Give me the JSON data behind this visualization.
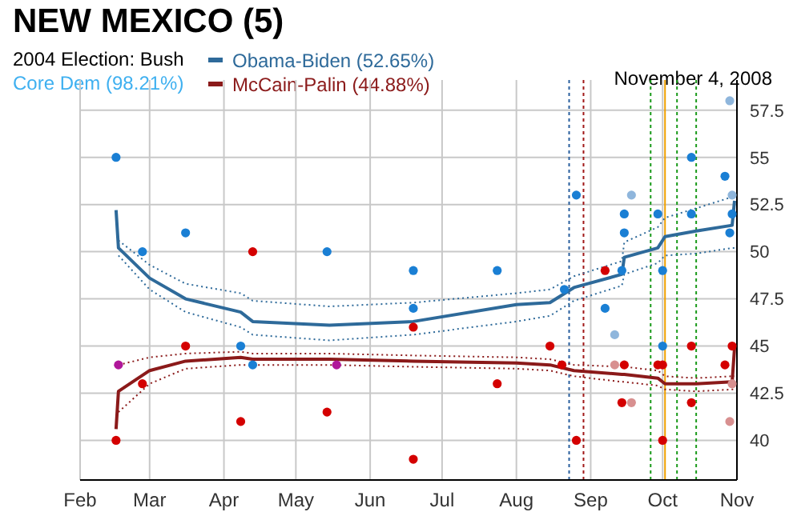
{
  "chart_data": {
    "type": "line",
    "title": "NEW MEXICO (5)",
    "annotations": [
      "2004 Election: Bush",
      "Core Dem (98.21%)",
      "November 4, 2008"
    ],
    "xlim": [
      "2008-02-01",
      "2008-11-01"
    ],
    "xticks": [
      {
        "value": "2008-02-01",
        "label": "Feb"
      },
      {
        "value": "2008-03-01",
        "label": "Mar"
      },
      {
        "value": "2008-04-01",
        "label": "Apr"
      },
      {
        "value": "2008-05-01",
        "label": "May"
      },
      {
        "value": "2008-06-01",
        "label": "Jun"
      },
      {
        "value": "2008-07-01",
        "label": "Jul"
      },
      {
        "value": "2008-08-01",
        "label": "Aug"
      },
      {
        "value": "2008-09-01",
        "label": "Sep"
      },
      {
        "value": "2008-10-01",
        "label": "Oct"
      },
      {
        "value": "2008-11-01",
        "label": "Nov"
      }
    ],
    "ylim": [
      37.9,
      59.1
    ],
    "yticks": [
      40,
      42.5,
      45,
      47.5,
      50,
      52.5,
      55,
      57.5
    ],
    "grid": true,
    "legend": "top",
    "ref_lines": [
      {
        "axis": "x",
        "value": "2008-08-23",
        "color": "#2a5f9e",
        "line_style": "dotted"
      },
      {
        "axis": "x",
        "value": "2008-08-29",
        "color": "#a01818",
        "line_style": "dotted"
      },
      {
        "axis": "x",
        "value": "2008-09-26",
        "color": "#1a9a1a",
        "line_style": "dotted"
      },
      {
        "axis": "x",
        "value": "2008-10-02",
        "color": "#f0a000",
        "line_style": "solid"
      },
      {
        "axis": "x",
        "value": "2008-10-07",
        "color": "#1a9a1a",
        "line_style": "dotted"
      },
      {
        "axis": "x",
        "value": "2008-10-15",
        "color": "#1a9a1a",
        "line_style": "dotted"
      }
    ],
    "series": [
      {
        "type": "scatter",
        "color": "#1a7fd4",
        "x": [
          "2008-02-16",
          "2008-02-27",
          "2008-03-16",
          "2008-04-08",
          "2008-04-13",
          "2008-05-14",
          "2008-06-19",
          "2008-06-19",
          "2008-07-24",
          "2008-08-21",
          "2008-08-26",
          "2008-09-07",
          "2008-09-15",
          "2008-09-15",
          "2008-09-14",
          "2008-09-29",
          "2008-10-01",
          "2008-10-01",
          "2008-10-13",
          "2008-10-13",
          "2008-10-27",
          "2008-10-30",
          "2008-10-29"
        ],
        "values": [
          55,
          50,
          51,
          45,
          44,
          50,
          49,
          47,
          49,
          48,
          53,
          47,
          52,
          51,
          49,
          52,
          49,
          45,
          52,
          55,
          54,
          52,
          51
        ]
      },
      {
        "type": "scatter",
        "color": "#d40000",
        "x": [
          "2008-02-16",
          "2008-02-27",
          "2008-03-16",
          "2008-04-13",
          "2008-04-08",
          "2008-05-14",
          "2008-06-19",
          "2008-06-19",
          "2008-07-24",
          "2008-08-15",
          "2008-08-20",
          "2008-08-26",
          "2008-09-07",
          "2008-09-15",
          "2008-09-14",
          "2008-09-29",
          "2008-10-01",
          "2008-10-01",
          "2008-10-13",
          "2008-10-13",
          "2008-10-27",
          "2008-10-30"
        ],
        "values": [
          40,
          43,
          45,
          50,
          41,
          41.5,
          39,
          46,
          43,
          45,
          44,
          40,
          49,
          44,
          42,
          44,
          44,
          40,
          45,
          42,
          44,
          45
        ]
      },
      {
        "type": "scatter",
        "color": "#b0179a",
        "x": [
          "2008-02-17",
          "2008-05-18"
        ],
        "values": [
          44,
          44
        ]
      },
      {
        "type": "scatter",
        "color": "#8fb6dc",
        "x": [
          "2008-09-18",
          "2008-09-11",
          "2008-10-29",
          "2008-10-30"
        ],
        "values": [
          53,
          45.6,
          58,
          53
        ]
      },
      {
        "type": "scatter",
        "color": "#d89090",
        "x": [
          "2008-09-11",
          "2008-09-18",
          "2008-10-29",
          "2008-10-30"
        ],
        "values": [
          44,
          42,
          41,
          43
        ]
      },
      {
        "line_style": "dotted",
        "color": "#2e6a9a",
        "x": [
          "2008-02-17",
          "2008-03-01",
          "2008-03-16",
          "2008-04-08",
          "2008-04-13",
          "2008-05-15",
          "2008-06-19",
          "2008-08-01",
          "2008-08-15",
          "2008-08-25",
          "2008-09-14",
          "2008-09-15",
          "2008-09-29",
          "2008-10-02",
          "2008-10-15",
          "2008-10-30",
          "2008-10-31"
        ],
        "values": [
          50.6,
          49.3,
          48.3,
          47.8,
          47.4,
          47.1,
          47.3,
          47.8,
          48.0,
          48.7,
          49.5,
          50.5,
          51.3,
          51.8,
          52.3,
          52.9,
          53.3
        ]
      },
      {
        "line_style": "dotted",
        "color": "#2e6a9a",
        "x": [
          "2008-02-17",
          "2008-03-01",
          "2008-03-16",
          "2008-04-08",
          "2008-04-13",
          "2008-05-15",
          "2008-06-19",
          "2008-08-01",
          "2008-08-15",
          "2008-08-25",
          "2008-09-14",
          "2008-09-15",
          "2008-09-29",
          "2008-10-02",
          "2008-10-15",
          "2008-10-30",
          "2008-10-31"
        ],
        "values": [
          49.8,
          48.0,
          46.8,
          46.0,
          45.6,
          45.3,
          45.6,
          46.3,
          46.6,
          47.4,
          48.2,
          48.8,
          49.4,
          49.8,
          49.9,
          50.2,
          50.2
        ]
      },
      {
        "line_style": "dotted",
        "color": "#8b1a1a",
        "x": [
          "2008-02-17",
          "2008-03-01",
          "2008-03-16",
          "2008-04-08",
          "2008-04-13",
          "2008-05-15",
          "2008-06-19",
          "2008-08-01",
          "2008-08-15",
          "2008-08-25",
          "2008-09-14",
          "2008-09-15",
          "2008-09-29",
          "2008-10-02",
          "2008-10-15",
          "2008-10-30",
          "2008-10-31"
        ],
        "values": [
          44.0,
          44.4,
          44.6,
          44.7,
          44.6,
          44.6,
          44.5,
          44.4,
          44.3,
          44.0,
          43.9,
          43.9,
          43.7,
          43.4,
          43.3,
          43.4,
          43.4
        ]
      },
      {
        "line_style": "dotted",
        "color": "#8b1a1a",
        "x": [
          "2008-02-17",
          "2008-03-01",
          "2008-03-16",
          "2008-04-08",
          "2008-04-13",
          "2008-05-15",
          "2008-06-19",
          "2008-08-01",
          "2008-08-15",
          "2008-08-25",
          "2008-09-14",
          "2008-09-15",
          "2008-09-29",
          "2008-10-02",
          "2008-10-15",
          "2008-10-30",
          "2008-10-31"
        ],
        "values": [
          41.5,
          43.0,
          43.8,
          44.0,
          44.0,
          44.0,
          43.9,
          43.8,
          43.7,
          43.4,
          43.1,
          43.1,
          42.9,
          42.7,
          42.6,
          42.7,
          42.7
        ]
      },
      {
        "type": "line",
        "line_style": "solid",
        "name": "Obama-Biden (52.65%)",
        "color": "#2e6a9a",
        "x": [
          "2008-02-16",
          "2008-02-17",
          "2008-03-01",
          "2008-03-16",
          "2008-04-08",
          "2008-04-13",
          "2008-05-15",
          "2008-06-19",
          "2008-08-01",
          "2008-08-15",
          "2008-08-25",
          "2008-09-14",
          "2008-09-15",
          "2008-09-29",
          "2008-10-02",
          "2008-10-15",
          "2008-10-30",
          "2008-10-31"
        ],
        "values": [
          52.2,
          50.2,
          48.6,
          47.5,
          46.8,
          46.3,
          46.1,
          46.3,
          47.2,
          47.3,
          48.1,
          48.8,
          49.7,
          50.2,
          50.8,
          51.1,
          51.4,
          52.7
        ]
      },
      {
        "type": "line",
        "line_style": "solid",
        "name": "McCain-Palin (44.88%)",
        "color": "#8b1a1a",
        "x": [
          "2008-02-16",
          "2008-02-17",
          "2008-03-01",
          "2008-03-16",
          "2008-04-08",
          "2008-04-13",
          "2008-05-15",
          "2008-06-19",
          "2008-08-01",
          "2008-08-15",
          "2008-08-25",
          "2008-09-14",
          "2008-09-15",
          "2008-09-29",
          "2008-10-02",
          "2008-10-15",
          "2008-10-30",
          "2008-10-31"
        ],
        "values": [
          40.6,
          42.6,
          43.7,
          44.2,
          44.4,
          44.3,
          44.3,
          44.2,
          44.1,
          44.0,
          43.7,
          43.5,
          43.5,
          43.3,
          43.0,
          43.0,
          43.1,
          44.9
        ]
      }
    ]
  }
}
